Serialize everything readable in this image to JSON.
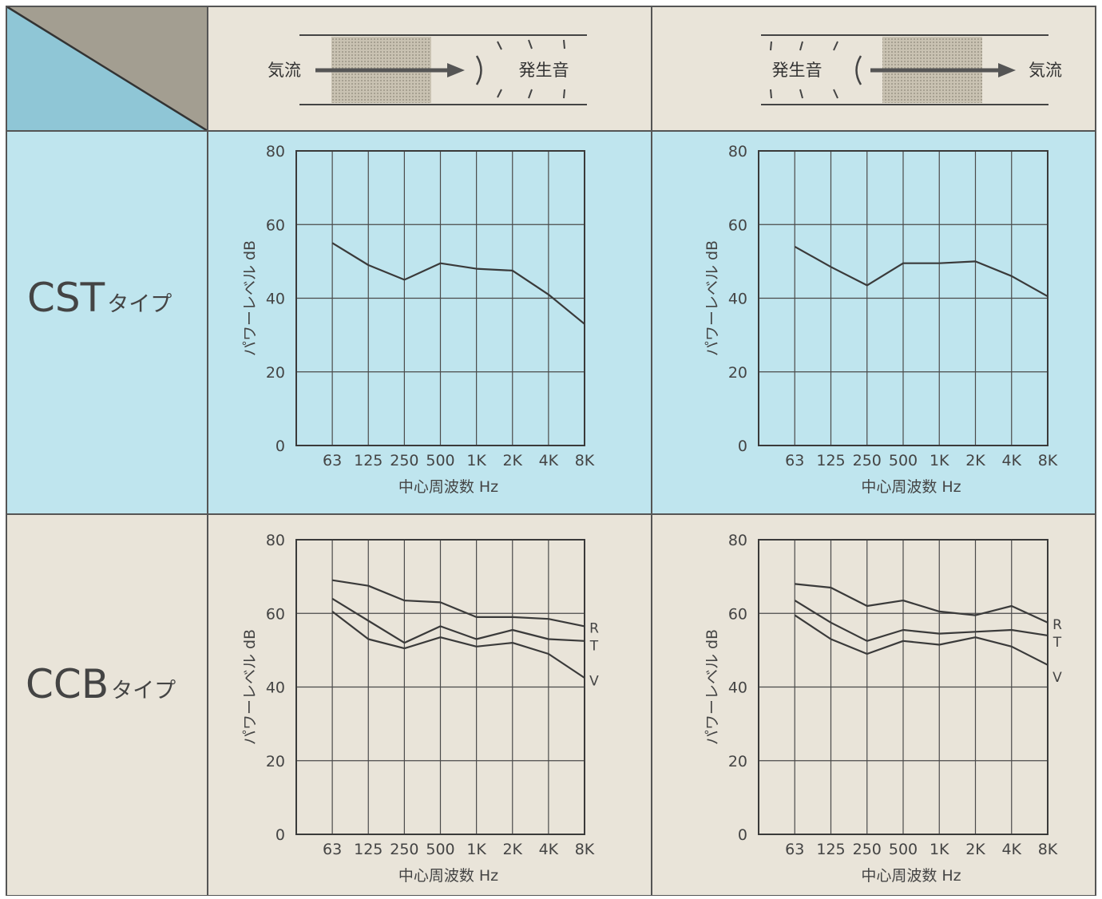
{
  "colors": {
    "beige": "#e9e4d9",
    "blue": "#bfe5ee",
    "blue_corner": "#8fc6d6",
    "gray_corner": "#a39e91",
    "grid": "#3a3a3a",
    "text": "#333333",
    "arrow_fill": "#bdb6a6",
    "arrow_head": "#555555"
  },
  "header": {
    "left": {
      "flow_label": "気流",
      "sound_label": "発生音"
    },
    "right": {
      "flow_label": "気流",
      "sound_label": "発生音"
    }
  },
  "rows": [
    {
      "name": "CST",
      "suffix": "タイプ"
    },
    {
      "name": "CCB",
      "suffix": "タイプ"
    }
  ],
  "chart_data": [
    {
      "type": "line",
      "xlabel": "中心周波数 Hz",
      "ylabel": "パワーレベル dB",
      "categories": [
        "63",
        "125",
        "250",
        "500",
        "1K",
        "2K",
        "4K",
        "8K"
      ],
      "ylim": [
        0,
        80
      ],
      "yticks": [
        0,
        20,
        40,
        60,
        80
      ],
      "grid": true,
      "series": [
        {
          "values": [
            55,
            49,
            45,
            49.5,
            48,
            47.5,
            41,
            33
          ]
        }
      ]
    },
    {
      "type": "line",
      "xlabel": "中心周波数 Hz",
      "ylabel": "パワーレベル dB",
      "categories": [
        "63",
        "125",
        "250",
        "500",
        "1K",
        "2K",
        "4K",
        "8K"
      ],
      "ylim": [
        0,
        80
      ],
      "yticks": [
        0,
        20,
        40,
        60,
        80
      ],
      "grid": true,
      "series": [
        {
          "values": [
            54,
            48.5,
            43.5,
            49.5,
            49.5,
            50,
            46,
            40.5
          ]
        }
      ]
    },
    {
      "type": "line",
      "xlabel": "中心周波数 Hz",
      "ylabel": "パワーレベル dB",
      "categories": [
        "63",
        "125",
        "250",
        "500",
        "1K",
        "2K",
        "4K",
        "8K"
      ],
      "ylim": [
        0,
        80
      ],
      "yticks": [
        0,
        20,
        40,
        60,
        80
      ],
      "grid": true,
      "series": [
        {
          "name": "R",
          "values": [
            69,
            67.5,
            63.5,
            63,
            59,
            59,
            58.5,
            56.5
          ]
        },
        {
          "name": "T",
          "values": [
            64,
            58,
            52,
            56.5,
            53,
            55.5,
            53,
            52.5
          ]
        },
        {
          "name": "V",
          "values": [
            60.5,
            53,
            50.5,
            53.5,
            51,
            52,
            49,
            42.5
          ]
        }
      ]
    },
    {
      "type": "line",
      "xlabel": "中心周波数 Hz",
      "ylabel": "パワーレベル dB",
      "categories": [
        "63",
        "125",
        "250",
        "500",
        "1K",
        "2K",
        "4K",
        "8K"
      ],
      "ylim": [
        0,
        80
      ],
      "yticks": [
        0,
        20,
        40,
        60,
        80
      ],
      "grid": true,
      "series": [
        {
          "name": "R",
          "values": [
            68,
            67,
            62,
            63.5,
            60.5,
            59.5,
            62,
            57.5
          ]
        },
        {
          "name": "T",
          "values": [
            63.5,
            57.5,
            52.5,
            55.5,
            54.5,
            55,
            55.5,
            54
          ]
        },
        {
          "name": "V",
          "values": [
            59.5,
            53,
            49,
            52.5,
            51.5,
            53.5,
            51,
            46
          ]
        }
      ]
    }
  ]
}
